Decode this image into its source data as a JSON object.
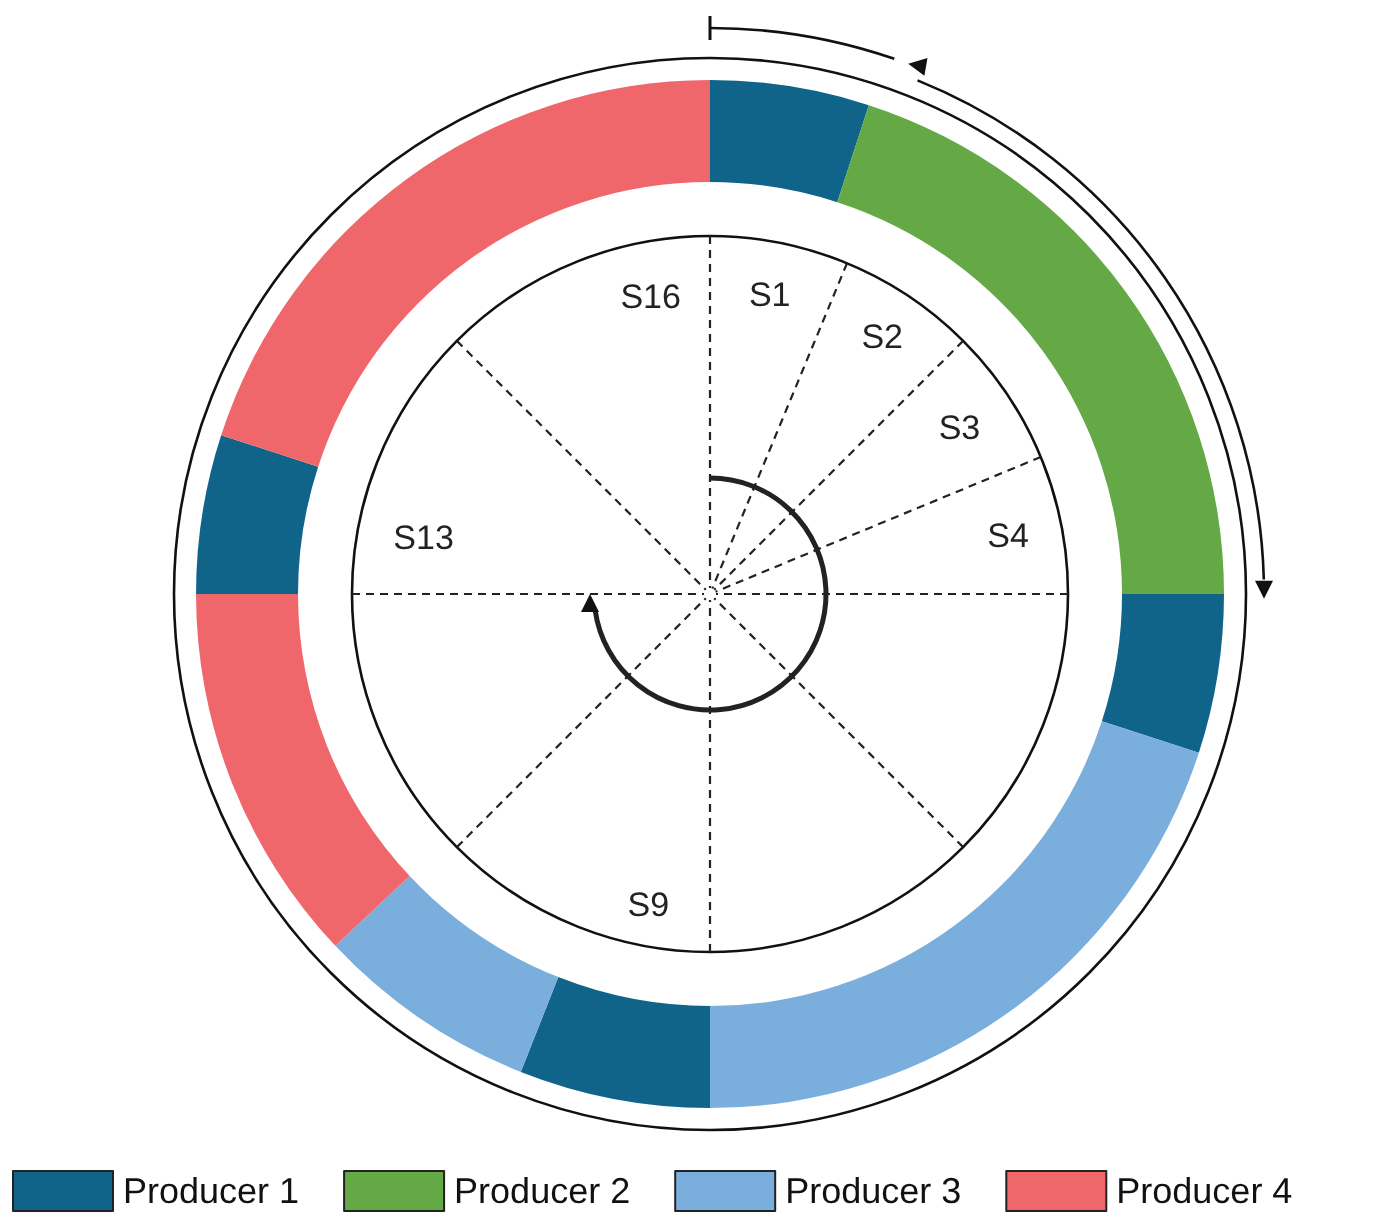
{
  "chart_data": {
    "type": "donut",
    "categories": [
      "Producer 1",
      "Producer 2",
      null,
      "Producer 3",
      null,
      null,
      "Producer 4",
      null,
      null
    ],
    "values": [
      5,
      20,
      5,
      20,
      6,
      7,
      12,
      5,
      20
    ],
    "colors": [
      "#10648a",
      "#64a945",
      "#10648a",
      "#7aaedc",
      "#10648a",
      "#7aaedc",
      "#f0676b",
      "#10648a",
      "#f0676b"
    ],
    "annotations": [
      "S1",
      "S2",
      "S3",
      "S4",
      "S9",
      "S13",
      "S16"
    ],
    "legend": "bottom"
  }
}
